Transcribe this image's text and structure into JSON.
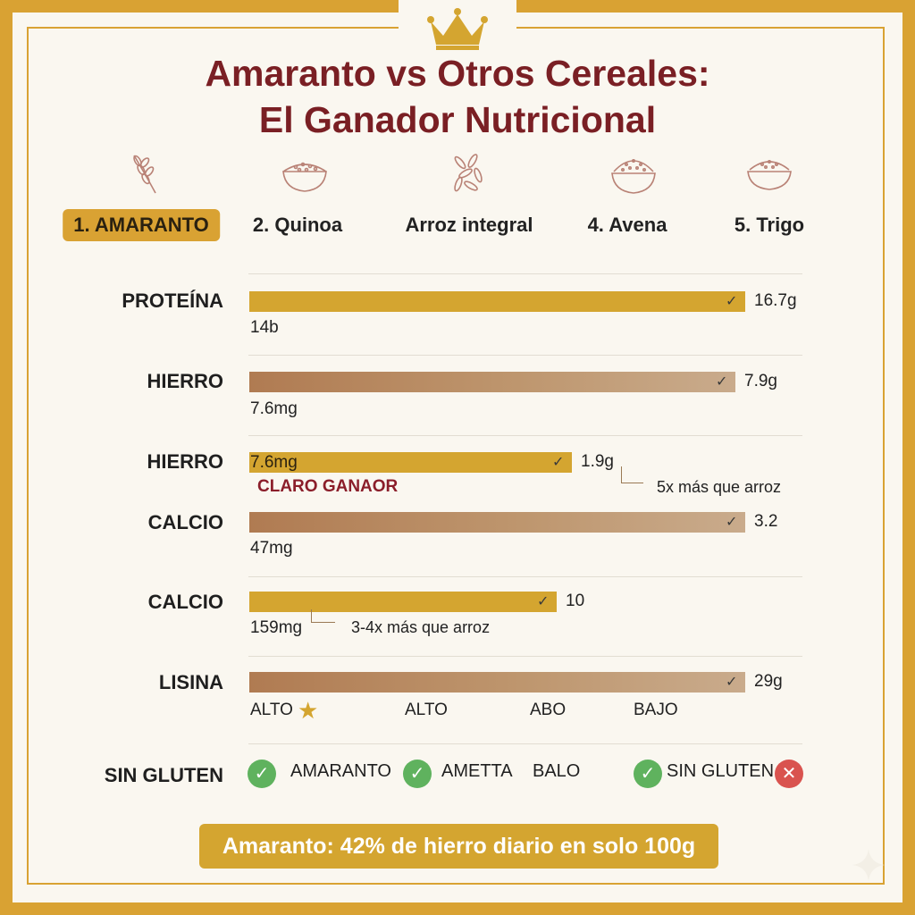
{
  "title": {
    "line1": "Amaranto vs Otros Cereales:",
    "line2": "El Ganador Nutricional"
  },
  "header_icons": [
    "wheat-icon",
    "quinoa-bowl-icon",
    "rice-grains-icon",
    "oat-bowl-icon",
    "wheat-bowl-icon"
  ],
  "categories": [
    "1. AMARANTO",
    "2. Quinoa",
    "Arroz integral",
    "4. Avena",
    "5. Trigo"
  ],
  "colors": {
    "gold": "#d4a530",
    "brown": "#b07b52",
    "title": "#7a1f24",
    "border": "#d9a233",
    "check_green": "#5fb25e",
    "cross_red": "#d9534f"
  },
  "chart_data": {
    "type": "bar",
    "orientation": "horizontal",
    "rows": [
      {
        "label": "PROTEÍNA",
        "bar_value_label": "16.7g",
        "sub_value": "14b",
        "color": "gold",
        "relative_length": 1.0
      },
      {
        "label": "HIERRO",
        "bar_value_label": "7.9g",
        "sub_value": "7.6mg",
        "color": "brown",
        "relative_length": 0.98
      },
      {
        "label": "HIERRO",
        "bar_value_label": "1.9g",
        "inbar_text": "7.6mg",
        "badge": "CLARO GANAOR",
        "note": "5x más que arroz",
        "color": "gold",
        "relative_length": 0.65
      },
      {
        "label": "CALCIO",
        "bar_value_label": "3.2",
        "sub_value": "47mg",
        "color": "brown",
        "relative_length": 1.0
      },
      {
        "label": "CALCIO",
        "bar_value_label": "10",
        "sub_value": "159mg",
        "note": "3-4x más que arroz",
        "color": "gold",
        "relative_length": 0.62
      },
      {
        "label": "LISINA",
        "bar_value_label": "29g",
        "color": "brown",
        "relative_length": 1.0,
        "levels": [
          "ALTO",
          "ALTO",
          "ABO",
          "BAJO"
        ]
      }
    ]
  },
  "gluten": {
    "label": "SIN GLUTEN",
    "items": [
      {
        "text": "AMARANTO",
        "status": "ok"
      },
      {
        "text": "AMETTA",
        "status": "ok"
      },
      {
        "text": "BALO",
        "status": "none"
      },
      {
        "text": "SIN GLUTEN",
        "status": "ok"
      },
      {
        "text": "",
        "status": "no"
      }
    ]
  },
  "banner": "Amaranto: 42% de hierro diario en solo 100g",
  "check_glyph": "✓",
  "star_glyph": "★",
  "ok_glyph": "✓",
  "no_glyph": "✕"
}
